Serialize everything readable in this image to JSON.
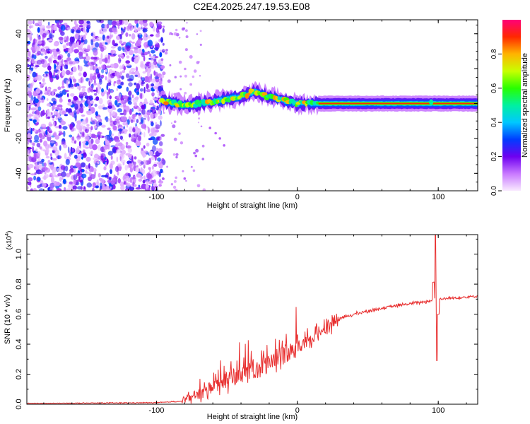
{
  "title": "C2E4.2025.247.19.53.E08",
  "chart_data": [
    {
      "type": "heatmap",
      "title": "C2E4.2025.247.19.53.E08",
      "xlabel": "Height of straight line (km)",
      "ylabel": "Frequency (Hz)",
      "xlim": [
        -192,
        128
      ],
      "ylim": [
        -50,
        48
      ],
      "xticks": [
        -100,
        0,
        100
      ],
      "xtick_labels": [
        "-100",
        "0",
        "100"
      ],
      "yticks": [
        -40,
        -20,
        0,
        20,
        40
      ],
      "ytick_labels": [
        "-40",
        "-20",
        "0",
        "20",
        "40"
      ],
      "colorbar": {
        "label": "Normalized spectral amplitude",
        "range": [
          0,
          1
        ],
        "ticks": [
          0.0,
          0.2,
          0.4,
          0.6,
          0.8
        ],
        "tick_labels": [
          "0.0",
          "0.2",
          "0.4",
          "0.6",
          "0.8"
        ]
      },
      "ridge": {
        "description_x": [
          -96,
          -80,
          -60,
          -40,
          -30,
          -20,
          -10,
          0,
          15,
          128
        ],
        "frequency_hz": [
          1.5,
          -1,
          1,
          4,
          7,
          4,
          2,
          0,
          0,
          0
        ],
        "noise_region_x": [
          -192,
          -95
        ]
      }
    },
    {
      "type": "line",
      "xlabel": "Height of straight line (km)",
      "ylabel": "SNR (10 * v/v)",
      "y_multiplier_label": "(x10",
      "y_multiplier_exp": "4",
      "y_multiplier_close": ")",
      "xlim": [
        -192,
        128
      ],
      "ylim": [
        0,
        1.13
      ],
      "xticks": [
        -100,
        0,
        100
      ],
      "xtick_labels": [
        "-100",
        "0",
        "100"
      ],
      "yticks": [
        0.0,
        0.2,
        0.4,
        0.6,
        0.8,
        1.0
      ],
      "ytick_labels": [
        "0.0",
        "0.2",
        "0.4",
        "0.6",
        "0.8",
        "1.0"
      ],
      "series": [
        {
          "name": "SNR",
          "color": "#e83030",
          "x": [
            -192,
            -100,
            -82,
            -70,
            -60,
            -50,
            -40,
            -30,
            -20,
            -10,
            0,
            10,
            20,
            30,
            40,
            60,
            80,
            95,
            100,
            128
          ],
          "y": [
            0.005,
            0.01,
            0.02,
            0.06,
            0.12,
            0.16,
            0.2,
            0.24,
            0.27,
            0.33,
            0.38,
            0.43,
            0.52,
            0.57,
            0.6,
            0.64,
            0.67,
            0.69,
            0.7,
            0.72
          ],
          "spike": {
            "x": 98,
            "ymax": 1.13,
            "ymin": 0.29
          }
        }
      ]
    }
  ]
}
